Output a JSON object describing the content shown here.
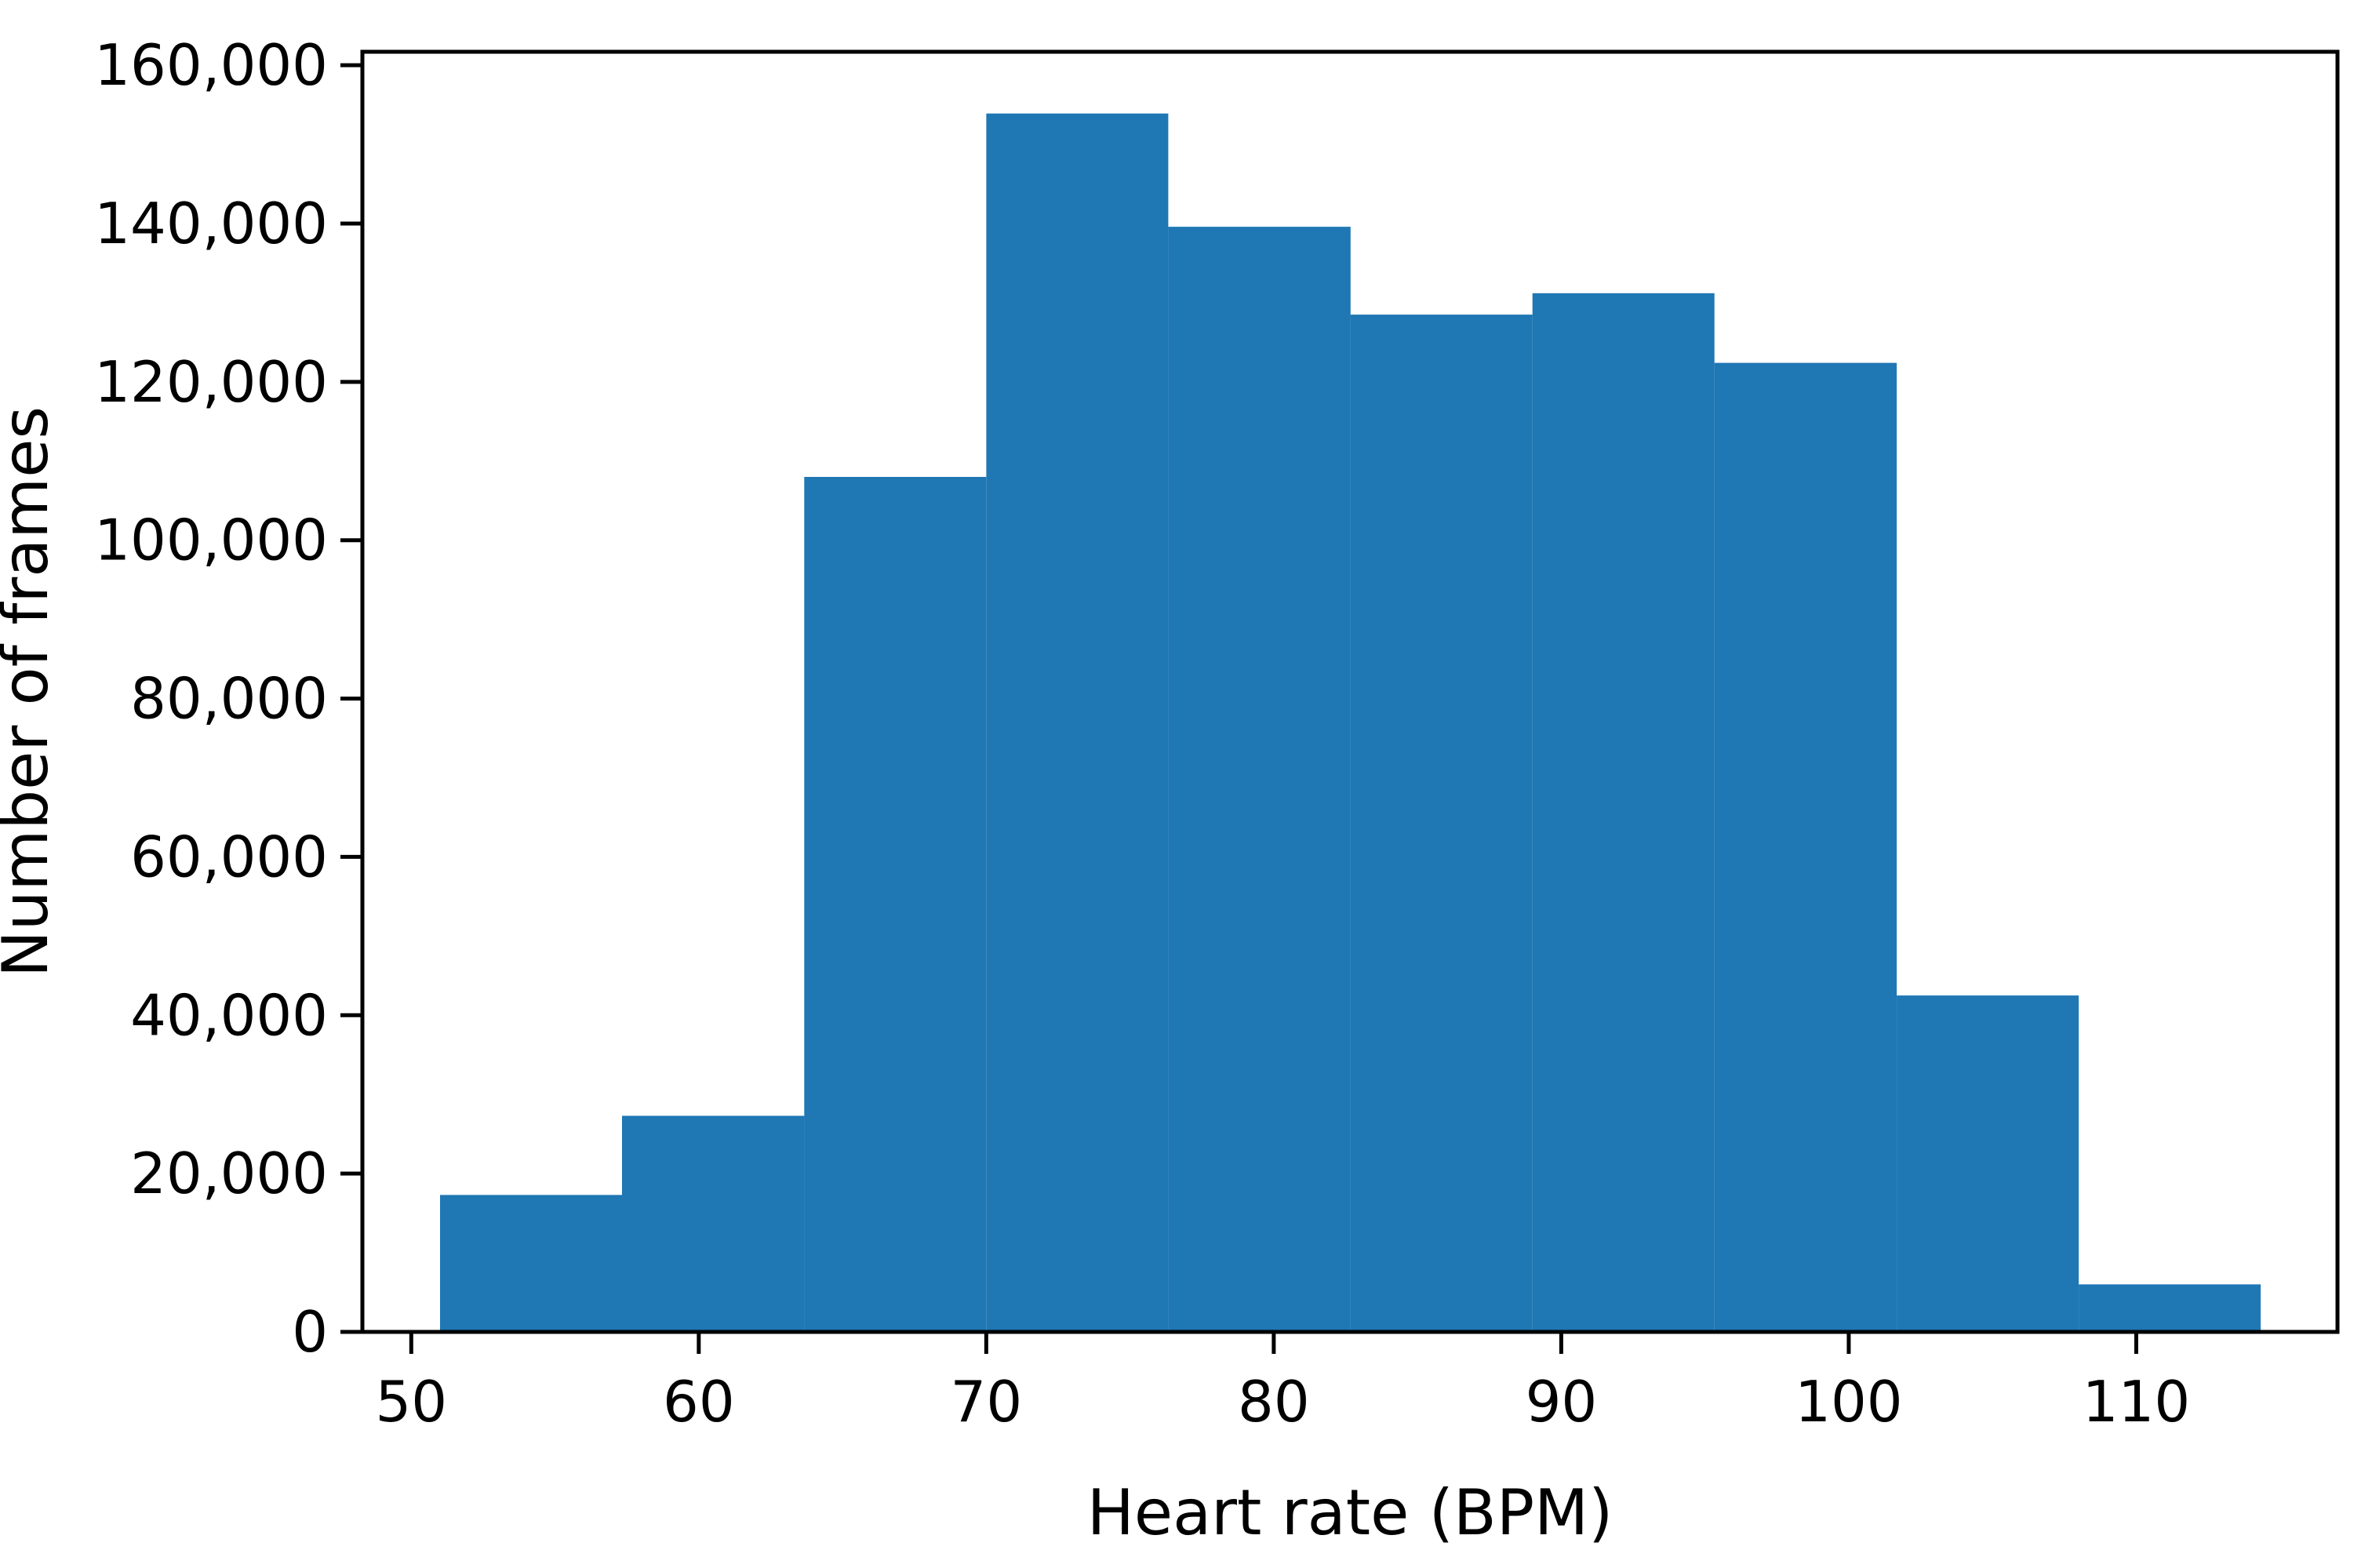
{
  "chart_data": {
    "type": "bar",
    "subtype": "histogram",
    "title": "",
    "xlabel": "Heart rate (BPM)",
    "ylabel": "Number of frames",
    "bin_edges": [
      51.0,
      57.33,
      63.67,
      70.0,
      76.33,
      82.67,
      89.0,
      95.33,
      101.67,
      108.0,
      114.33
    ],
    "counts": [
      17300,
      27300,
      108000,
      153900,
      139600,
      128500,
      131200,
      122400,
      42500,
      6000
    ],
    "xlim": [
      48.3,
      117.0
    ],
    "ylim": [
      0,
      161700
    ],
    "xticks": [
      50,
      60,
      70,
      80,
      90,
      100,
      110
    ],
    "xtick_labels": [
      "50",
      "60",
      "70",
      "80",
      "90",
      "100",
      "110"
    ],
    "yticks": [
      0,
      20000,
      40000,
      60000,
      80000,
      100000,
      120000,
      140000,
      160000
    ],
    "ytick_labels": [
      "0",
      "20,000",
      "40,000",
      "60,000",
      "80,000",
      "100,000",
      "120,000",
      "140,000",
      "160,000"
    ],
    "grid": false,
    "legend": null,
    "colors": {
      "bar": "#1f77b4",
      "axis": "#000000",
      "text": "#000000",
      "background": "#ffffff"
    }
  }
}
